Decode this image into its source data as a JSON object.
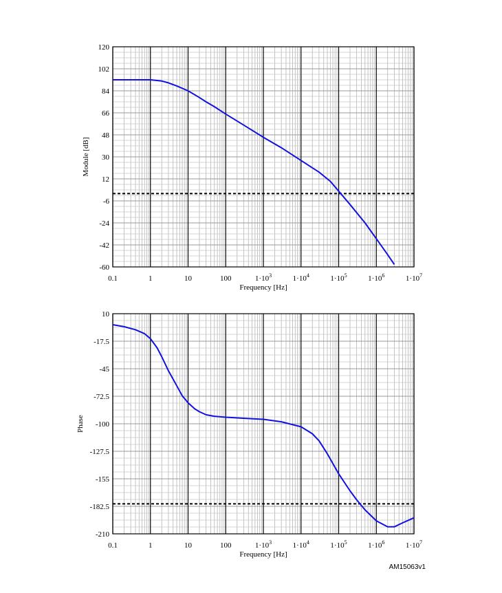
{
  "doc_code": "AM15063v1",
  "chart_data": [
    {
      "type": "line",
      "xlabel": "Frequency [Hz]",
      "ylabel": "Module [dB]",
      "xscale": "log",
      "xlim": [
        0.1,
        10000000
      ],
      "ylim": [
        -60,
        120
      ],
      "grid": true,
      "x_tick_labels": [
        {
          "value": 0.1,
          "base": "0.1",
          "sup": ""
        },
        {
          "value": 1,
          "base": "1",
          "sup": ""
        },
        {
          "value": 10,
          "base": "10",
          "sup": ""
        },
        {
          "value": 100,
          "base": "100",
          "sup": ""
        },
        {
          "value": 1000,
          "base": "1·10",
          "sup": "3"
        },
        {
          "value": 10000,
          "base": "1·10",
          "sup": "4"
        },
        {
          "value": 100000,
          "base": "1·10",
          "sup": "5"
        },
        {
          "value": 1000000,
          "base": "1·10",
          "sup": "6"
        },
        {
          "value": 10000000,
          "base": "1·10",
          "sup": "7"
        }
      ],
      "y_ticks": [
        120,
        102,
        84,
        66,
        48,
        30,
        12,
        -6,
        -24,
        -42,
        -60
      ],
      "reference_line": {
        "y": 0,
        "style": "dashed",
        "color": "#000000"
      },
      "series": [
        {
          "color": "#1010e0",
          "x": [
            0.1,
            0.3,
            1,
            2,
            3,
            5,
            10,
            20,
            30,
            50,
            100,
            300,
            1000,
            3000,
            10000,
            30000,
            60000,
            100000,
            200000,
            500000,
            1000000,
            2000000,
            3000000
          ],
          "y": [
            93,
            93,
            93,
            92,
            90.5,
            88,
            84,
            78.5,
            75,
            71,
            65,
            56,
            46,
            37.5,
            27,
            17.5,
            10,
            2,
            -9,
            -24,
            -37,
            -50,
            -58
          ]
        }
      ]
    },
    {
      "type": "line",
      "xlabel": "Frequency [Hz]",
      "ylabel": "Phase",
      "xscale": "log",
      "xlim": [
        0.1,
        10000000
      ],
      "ylim": [
        -210,
        10
      ],
      "grid": true,
      "x_tick_labels": [
        {
          "value": 0.1,
          "base": "0.1",
          "sup": ""
        },
        {
          "value": 1,
          "base": "1",
          "sup": ""
        },
        {
          "value": 10,
          "base": "10",
          "sup": ""
        },
        {
          "value": 100,
          "base": "100",
          "sup": ""
        },
        {
          "value": 1000,
          "base": "1·10",
          "sup": "3"
        },
        {
          "value": 10000,
          "base": "1·10",
          "sup": "4"
        },
        {
          "value": 100000,
          "base": "1·10",
          "sup": "5"
        },
        {
          "value": 1000000,
          "base": "1·10",
          "sup": "6"
        },
        {
          "value": 10000000,
          "base": "1·10",
          "sup": "7"
        }
      ],
      "y_ticks": [
        10,
        -17.5,
        -45,
        -72.5,
        -100,
        -127.5,
        -155,
        -182.5,
        -210
      ],
      "reference_line": {
        "y": -180,
        "style": "dashed",
        "color": "#000000"
      },
      "series": [
        {
          "color": "#1010e0",
          "x": [
            0.1,
            0.2,
            0.4,
            0.7,
            1,
            1.5,
            2,
            3,
            5,
            7,
            10,
            15,
            20,
            30,
            50,
            100,
            300,
            1000,
            3000,
            10000,
            20000,
            30000,
            50000,
            100000,
            200000,
            300000,
            500000,
            1000000,
            2000000,
            3000000,
            5000000,
            10000000
          ],
          "y": [
            -1,
            -3,
            -6,
            -10,
            -15,
            -24,
            -33,
            -47,
            -62,
            -72,
            -79,
            -85,
            -88,
            -91,
            -92.5,
            -93.5,
            -94.5,
            -95.5,
            -98,
            -103,
            -110,
            -117,
            -130,
            -150,
            -167,
            -176,
            -186,
            -197,
            -203,
            -203,
            -199,
            -194
          ]
        }
      ]
    }
  ]
}
